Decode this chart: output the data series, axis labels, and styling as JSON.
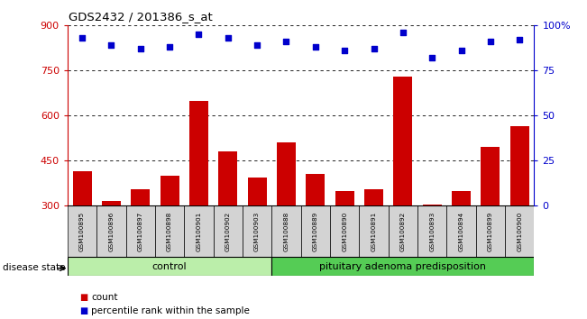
{
  "title": "GDS2432 / 201386_s_at",
  "samples": [
    "GSM100895",
    "GSM100896",
    "GSM100897",
    "GSM100898",
    "GSM100901",
    "GSM100902",
    "GSM100903",
    "GSM100888",
    "GSM100889",
    "GSM100890",
    "GSM100891",
    "GSM100892",
    "GSM100893",
    "GSM100894",
    "GSM100899",
    "GSM100900"
  ],
  "counts": [
    415,
    315,
    355,
    400,
    650,
    480,
    395,
    510,
    405,
    350,
    355,
    730,
    305,
    350,
    495,
    565
  ],
  "percentiles": [
    93,
    89,
    87,
    88,
    95,
    93,
    89,
    91,
    88,
    86,
    87,
    96,
    82,
    86,
    91,
    92
  ],
  "group_labels": [
    "control",
    "pituitary adenoma predisposition"
  ],
  "group_sizes": [
    7,
    9
  ],
  "ylim_left": [
    300,
    900
  ],
  "ylim_right": [
    0,
    100
  ],
  "yticks_left": [
    300,
    450,
    600,
    750,
    900
  ],
  "yticks_right": [
    0,
    25,
    50,
    75,
    100
  ],
  "bar_color": "#cc0000",
  "dot_color": "#0000cc",
  "control_color": "#bbeeaa",
  "disease_color": "#55cc55",
  "legend_count_label": "count",
  "legend_pct_label": "percentile rank within the sample",
  "disease_state_label": "disease state"
}
